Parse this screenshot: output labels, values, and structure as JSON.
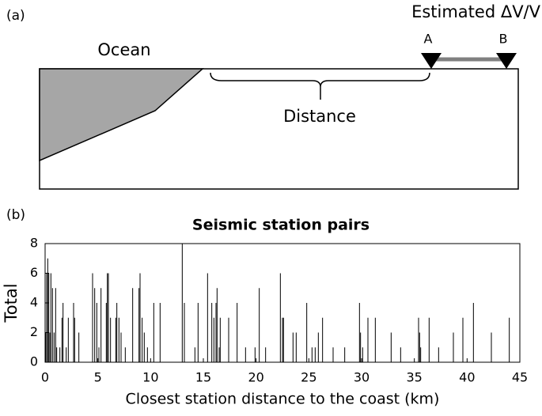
{
  "diagram": {
    "label": "(a)",
    "ocean": "Ocean",
    "estimate": "Estimated ΔV/V",
    "station_a": "A",
    "station_b": "B",
    "distance": "Distance"
  },
  "chart_data": {
    "type": "bar",
    "panel_label": "(b)",
    "title": "Seismic station pairs",
    "x_label": "Closest station distance to the coast (km)",
    "y_label": "Total",
    "color": "#000000",
    "x": [
      0.05,
      0.15,
      0.25,
      0.35,
      0.45,
      0.55,
      0.7,
      0.85,
      1.0,
      1.1,
      1.4,
      1.6,
      1.7,
      2.0,
      2.2,
      2.7,
      2.8,
      3.2,
      4.5,
      4.7,
      4.9,
      5.1,
      5.3,
      5.8,
      5.9,
      6.0,
      6.2,
      6.7,
      6.8,
      7.0,
      7.2,
      7.6,
      8.3,
      8.9,
      9.0,
      9.2,
      9.4,
      9.7,
      10.3,
      10.9,
      13.0,
      13.2,
      14.2,
      14.5,
      15.4,
      15.8,
      16.0,
      16.2,
      16.3,
      16.5,
      16.6,
      17.4,
      18.2,
      19.0,
      19.9,
      20.3,
      20.9,
      22.3,
      22.5,
      22.6,
      23.5,
      23.8,
      24.8,
      25.3,
      25.6,
      25.9,
      26.3,
      27.3,
      28.4,
      29.8,
      29.9,
      30.1,
      30.6,
      31.3,
      32.8,
      33.7,
      35.4,
      35.5,
      35.6,
      36.4,
      37.3,
      38.7,
      39.6,
      40.6,
      42.3,
      44.0
    ],
    "values": [
      2,
      6,
      7,
      6,
      2,
      6,
      5,
      2,
      5,
      1,
      1,
      3,
      4,
      1,
      3,
      4,
      3,
      2,
      6,
      5,
      4,
      1,
      5,
      4,
      6,
      6,
      3,
      3,
      4,
      3,
      2,
      1,
      5,
      5,
      6,
      3,
      2,
      1,
      4,
      4,
      8,
      4,
      1,
      4,
      6,
      4,
      3,
      4,
      5,
      1,
      3,
      3,
      4,
      1,
      1,
      5,
      1,
      6,
      3,
      3,
      2,
      2,
      4,
      1,
      1,
      2,
      3,
      1,
      1,
      4,
      2,
      1,
      3,
      3,
      2,
      1,
      3,
      2,
      1,
      3,
      1,
      2,
      3,
      4,
      2,
      3
    ],
    "xlim": [
      0,
      45
    ],
    "xticks": [
      0,
      5,
      10,
      15,
      20,
      25,
      30,
      35,
      40,
      45
    ],
    "ylim": [
      0,
      8
    ],
    "yticks": [
      0,
      2,
      4,
      6,
      8
    ]
  }
}
